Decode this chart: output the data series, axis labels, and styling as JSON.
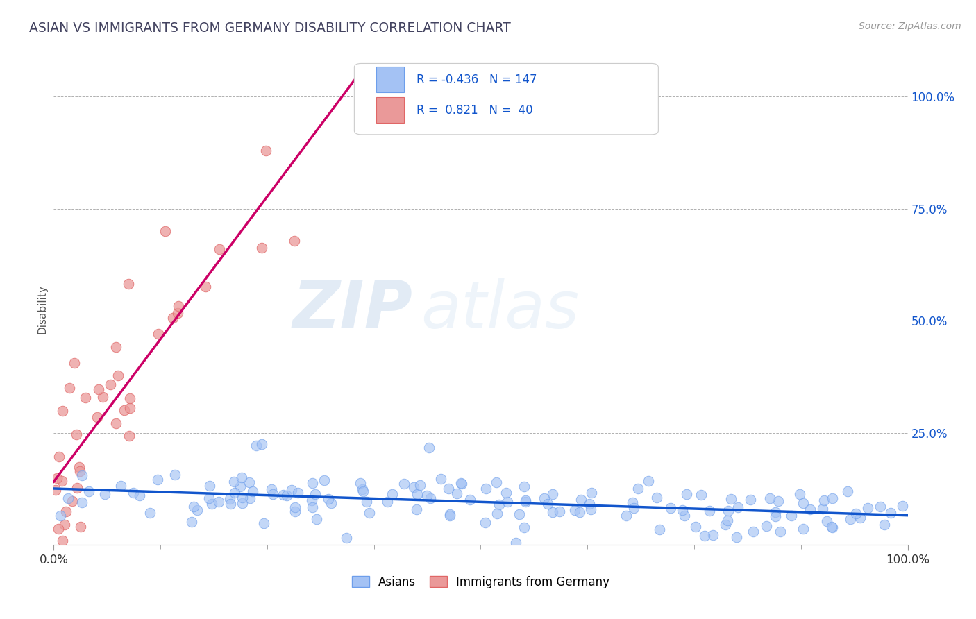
{
  "title": "ASIAN VS IMMIGRANTS FROM GERMANY DISABILITY CORRELATION CHART",
  "source": "Source: ZipAtlas.com",
  "ylabel": "Disability",
  "ytick_positions": [
    0.25,
    0.5,
    0.75,
    1.0
  ],
  "watermark_zip": "ZIP",
  "watermark_atlas": "atlas",
  "legend_asian_label": "Asians",
  "legend_germany_label": "Immigrants from Germany",
  "asian_color": "#a4c2f4",
  "asian_edge_color": "#6d9eeb",
  "asian_line_color": "#1155cc",
  "germany_color": "#ea9999",
  "germany_edge_color": "#e06666",
  "germany_line_color": "#cc0066",
  "background_color": "#ffffff",
  "grid_color": "#b0b0b0",
  "title_color": "#434360",
  "source_color": "#999999",
  "ytick_color": "#1155cc"
}
